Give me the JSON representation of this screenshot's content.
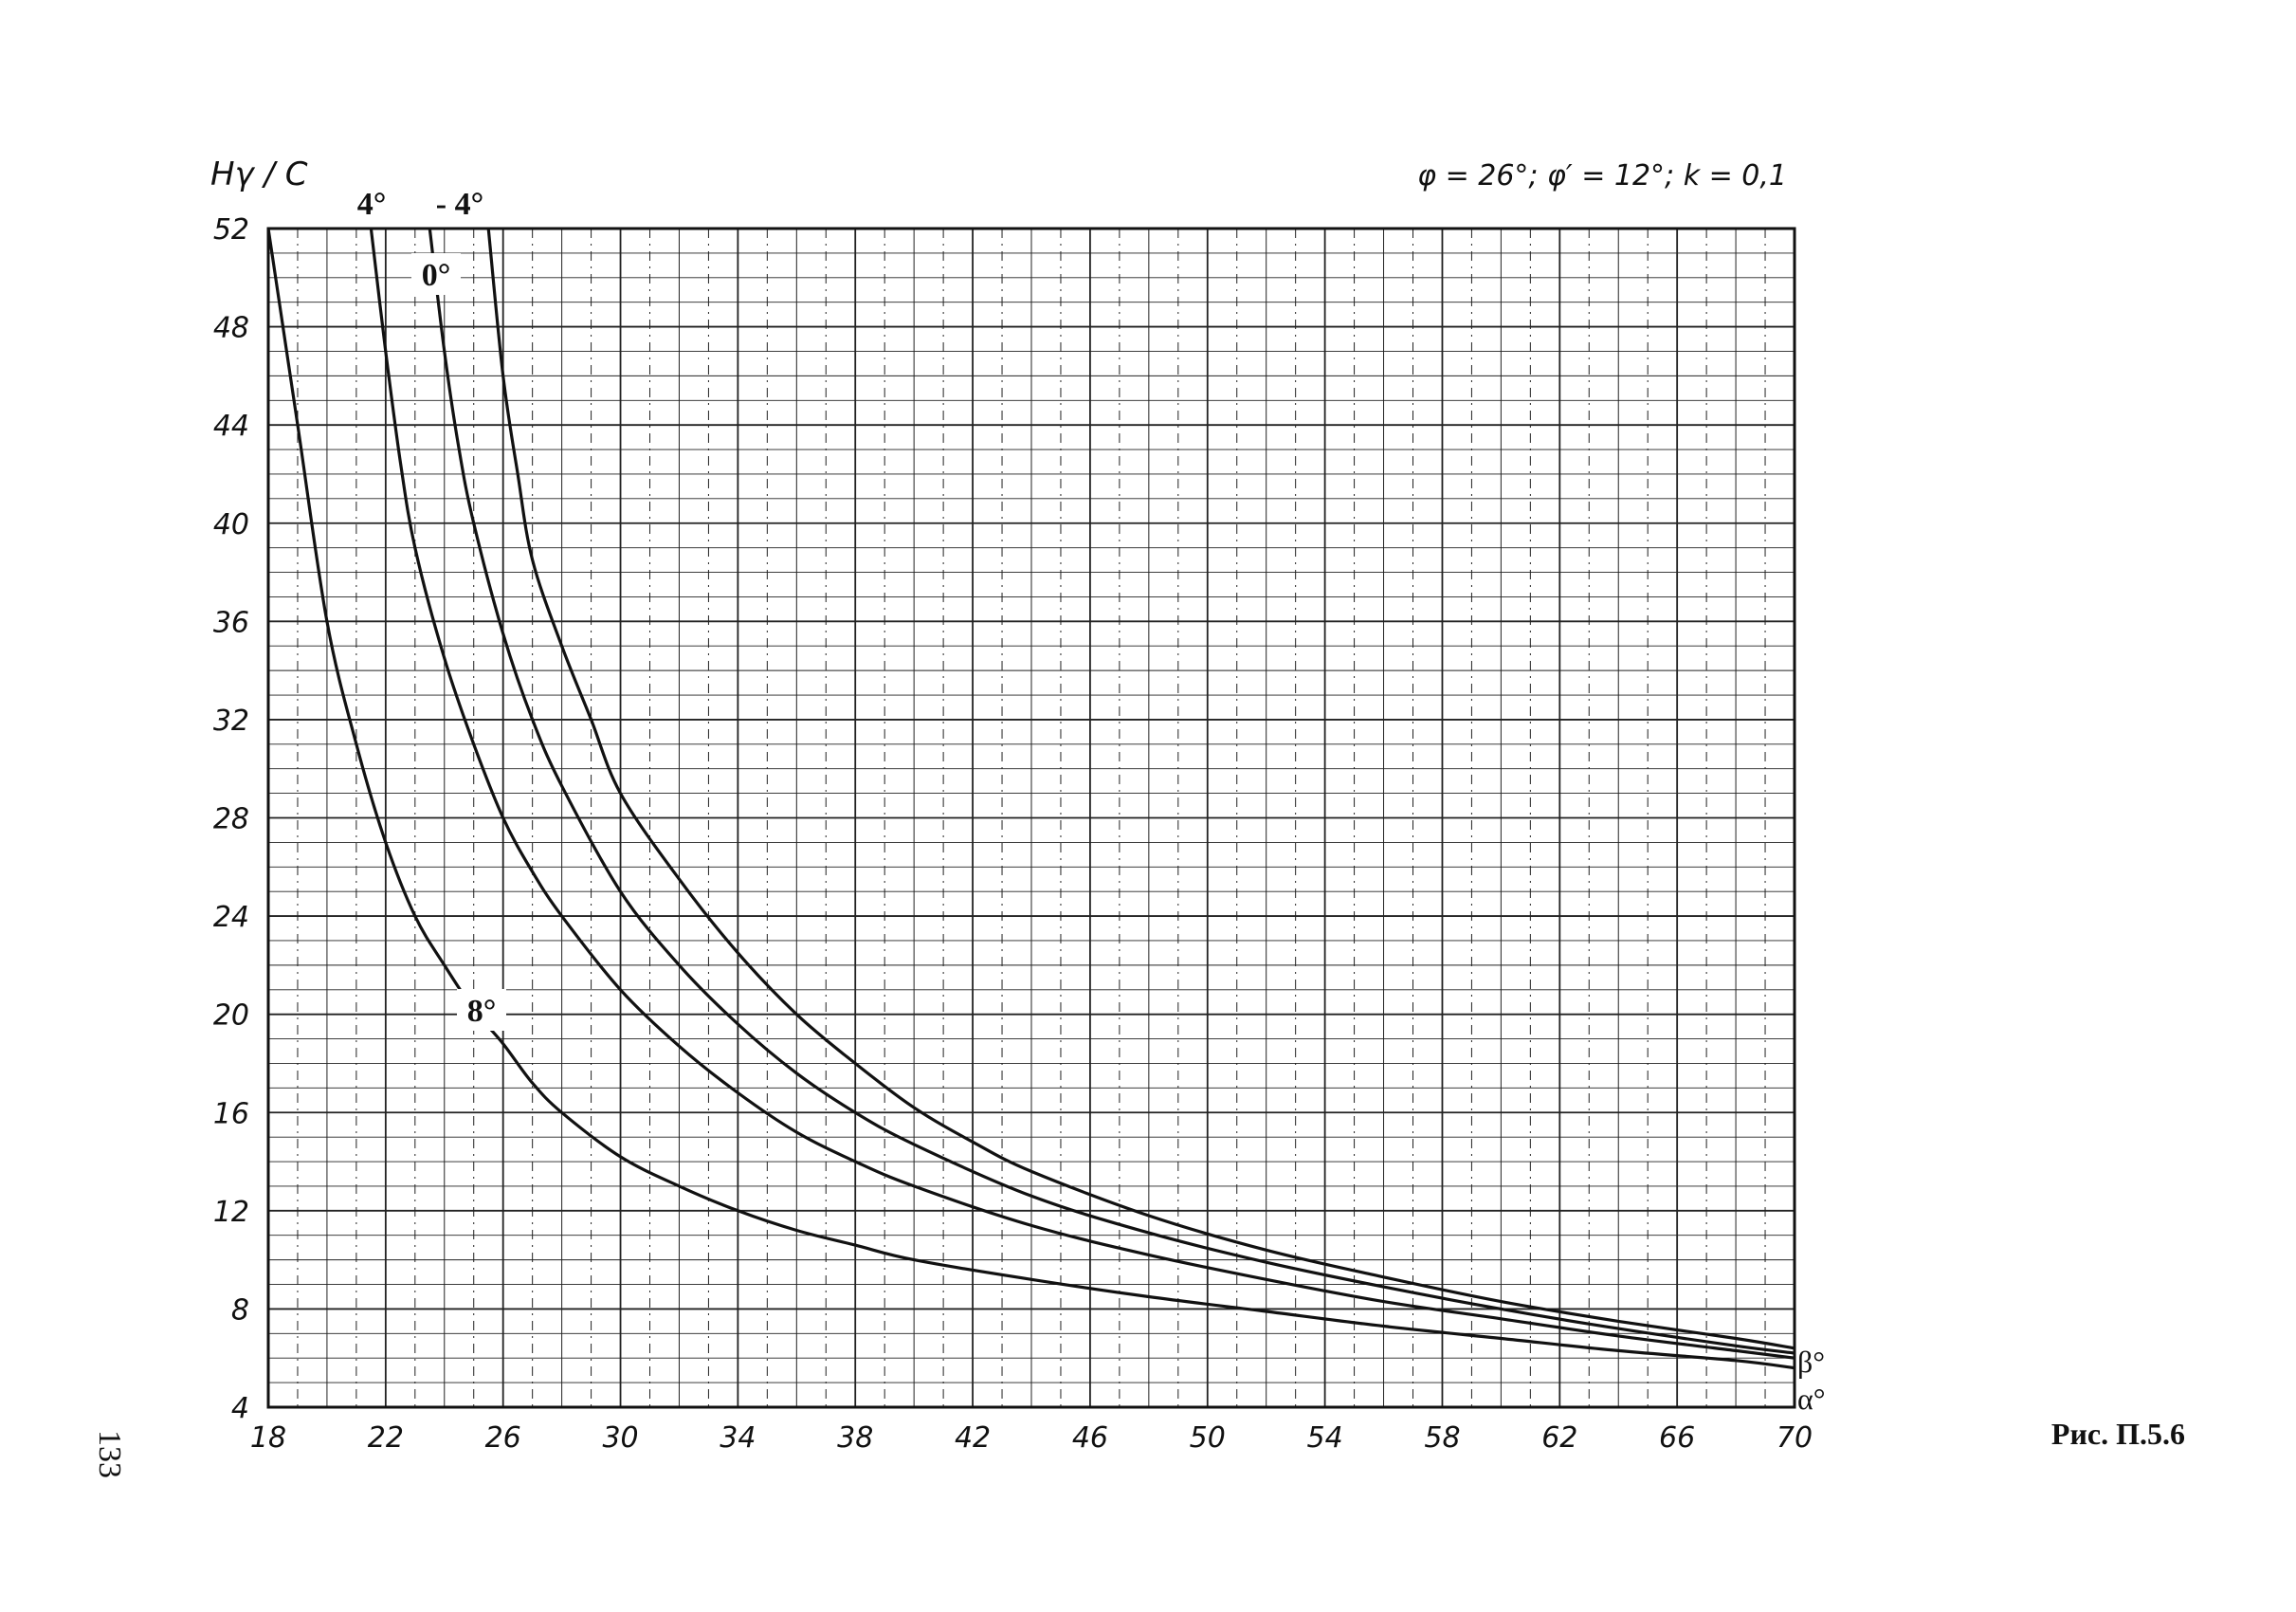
{
  "page": {
    "page_number": "133",
    "caption": "Рис. П.5.6"
  },
  "chart_data": {
    "type": "line",
    "ylabel": "Hγ / C",
    "xlabel_symbol_top": "β°",
    "xlabel_symbol_bottom": "α°",
    "params_text": "φ = 26°; φ′ = 12°; k = 0,1",
    "xlim": [
      18,
      70
    ],
    "ylim": [
      4,
      52
    ],
    "x_ticks": [
      18,
      22,
      26,
      30,
      34,
      38,
      42,
      46,
      50,
      54,
      58,
      62,
      66,
      70
    ],
    "y_ticks": [
      4,
      8,
      12,
      16,
      20,
      24,
      28,
      32,
      36,
      40,
      44,
      48,
      52
    ],
    "grid": true,
    "series": [
      {
        "name": "8°",
        "points": [
          [
            18,
            52
          ],
          [
            19,
            44
          ],
          [
            20,
            36
          ],
          [
            21,
            31
          ],
          [
            22,
            27
          ],
          [
            23,
            24
          ],
          [
            24,
            22
          ],
          [
            25,
            20.2
          ],
          [
            26,
            18.8
          ],
          [
            27,
            17.2
          ],
          [
            28,
            16
          ],
          [
            30,
            14.2
          ],
          [
            32,
            13
          ],
          [
            34,
            12
          ],
          [
            36,
            11.2
          ],
          [
            38,
            10.6
          ],
          [
            40,
            10
          ],
          [
            44,
            9.2
          ],
          [
            48,
            8.5
          ],
          [
            52,
            7.9
          ],
          [
            56,
            7.3
          ],
          [
            60,
            6.8
          ],
          [
            64,
            6.3
          ],
          [
            68,
            5.9
          ],
          [
            70,
            5.6
          ]
        ]
      },
      {
        "name": "4°",
        "points": [
          [
            21.5,
            52
          ],
          [
            22,
            47
          ],
          [
            22.5,
            42.5
          ],
          [
            23,
            39
          ],
          [
            24,
            34.5
          ],
          [
            25,
            31
          ],
          [
            26,
            28
          ],
          [
            27,
            25.8
          ],
          [
            28,
            24
          ],
          [
            30,
            21
          ],
          [
            32,
            18.7
          ],
          [
            34,
            16.8
          ],
          [
            36,
            15.2
          ],
          [
            38,
            14
          ],
          [
            40,
            13
          ],
          [
            44,
            11.4
          ],
          [
            48,
            10.2
          ],
          [
            52,
            9.2
          ],
          [
            56,
            8.3
          ],
          [
            60,
            7.6
          ],
          [
            64,
            6.9
          ],
          [
            68,
            6.3
          ],
          [
            70,
            6
          ]
        ]
      },
      {
        "name": "0°",
        "points": [
          [
            23.5,
            52
          ],
          [
            24,
            47
          ],
          [
            24.5,
            43
          ],
          [
            25,
            40
          ],
          [
            26,
            35.5
          ],
          [
            27,
            32
          ],
          [
            28,
            29.3
          ],
          [
            30,
            25
          ],
          [
            32,
            22
          ],
          [
            34,
            19.6
          ],
          [
            36,
            17.6
          ],
          [
            38,
            16
          ],
          [
            40,
            14.7
          ],
          [
            44,
            12.6
          ],
          [
            48,
            11.1
          ],
          [
            52,
            9.9
          ],
          [
            56,
            8.9
          ],
          [
            60,
            8
          ],
          [
            64,
            7.2
          ],
          [
            68,
            6.5
          ],
          [
            70,
            6.2
          ]
        ]
      },
      {
        "name": "- 4°",
        "points": [
          [
            25.5,
            52
          ],
          [
            26,
            46
          ],
          [
            26.5,
            42
          ],
          [
            27,
            38.5
          ],
          [
            28,
            35
          ],
          [
            29,
            32
          ],
          [
            30,
            29
          ],
          [
            32,
            25.5
          ],
          [
            34,
            22.5
          ],
          [
            36,
            20
          ],
          [
            38,
            18
          ],
          [
            40,
            16.2
          ],
          [
            42,
            14.8
          ],
          [
            44,
            13.6
          ],
          [
            48,
            11.8
          ],
          [
            52,
            10.4
          ],
          [
            56,
            9.3
          ],
          [
            60,
            8.3
          ],
          [
            64,
            7.5
          ],
          [
            68,
            6.8
          ],
          [
            70,
            6.4
          ]
        ]
      }
    ]
  }
}
